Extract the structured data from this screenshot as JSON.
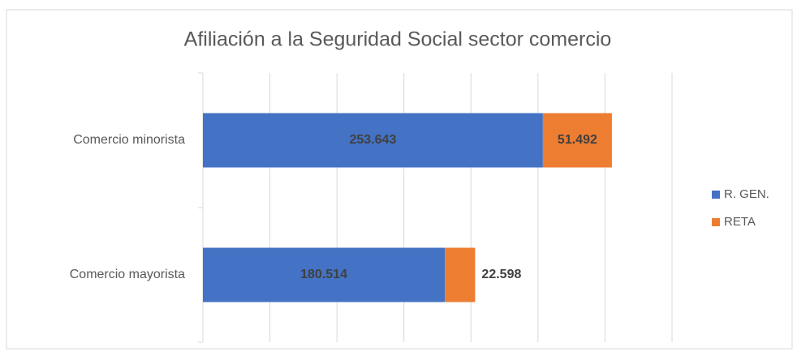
{
  "chart_data": {
    "type": "stacked_barh",
    "title": "Afiliación a la Seguridad Social sector comercio",
    "categories": [
      "Comercio minorista",
      "Comercio mayorista"
    ],
    "series": [
      {
        "name": "R. GEN.",
        "color": "#4472c4",
        "values": [
          253643,
          180514
        ],
        "value_labels": [
          "253.643",
          "180.514"
        ]
      },
      {
        "name": "RETA",
        "color": "#ed7d31",
        "values": [
          51492,
          22598
        ],
        "value_labels": [
          "51.492",
          "22.598"
        ]
      }
    ],
    "xlim": [
      0,
      350000
    ],
    "xticks": [
      0,
      50000,
      100000,
      150000,
      200000,
      250000,
      300000,
      350000
    ],
    "grid": true,
    "legend": "right"
  }
}
